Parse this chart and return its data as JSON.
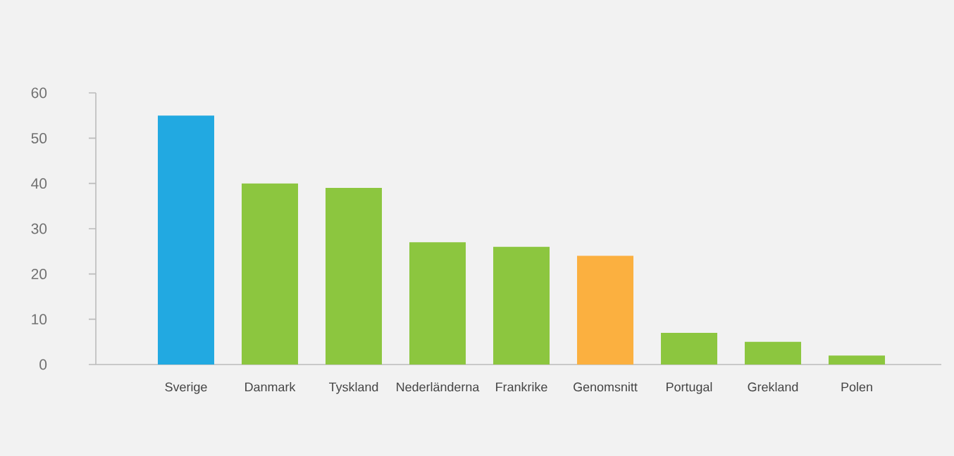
{
  "chart_data": {
    "type": "bar",
    "categories": [
      "Sverige",
      "Danmark",
      "Tyskland",
      "Nederländerna",
      "Frankrike",
      "Genomsnitt",
      "Portugal",
      "Grekland",
      "Polen"
    ],
    "values": [
      55,
      40,
      39,
      27,
      26,
      24,
      7,
      5,
      2
    ],
    "colors": [
      "#22a9e1",
      "#8cc63f",
      "#8cc63f",
      "#8cc63f",
      "#8cc63f",
      "#fbb040",
      "#8cc63f",
      "#8cc63f",
      "#8cc63f"
    ],
    "ylim": [
      0,
      60
    ],
    "yticks": [
      0,
      10,
      20,
      30,
      40,
      50,
      60
    ],
    "grid": false
  }
}
